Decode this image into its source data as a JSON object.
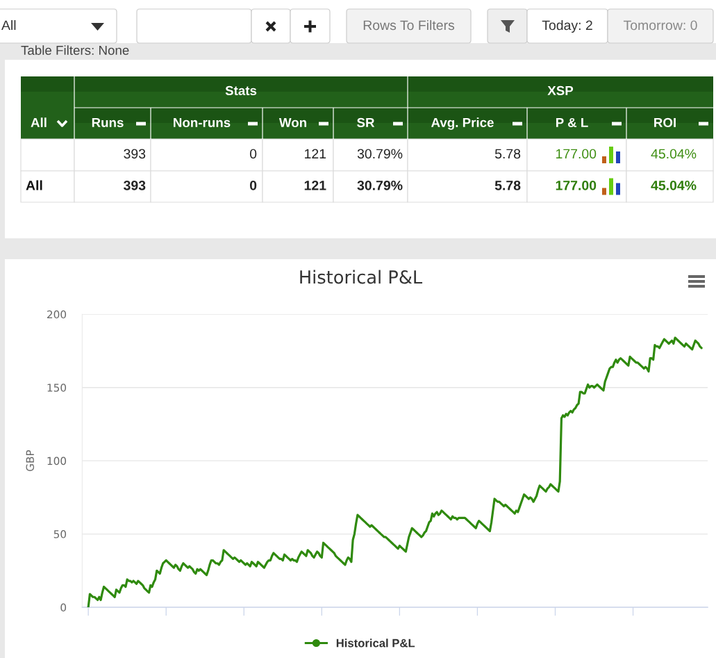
{
  "chart_data": [
    {
      "type": "other",
      "annotations": [
        "All",
        "Rows To Filters",
        "Today: 2",
        "Tomorrow: 0",
        "Table Filters: None",
        "Stats",
        "XSP",
        "All",
        "Runs",
        "Non-runs",
        "Won",
        "SR",
        "Avg. Price",
        "P & L",
        "ROI",
        "393",
        "0",
        "121",
        "30.79%",
        "5.78",
        "177.00",
        "45.04%",
        "All",
        "393",
        "0",
        "121",
        "30.79%",
        "5.78",
        "177.00",
        "45.04%"
      ]
    },
    {
      "type": "line",
      "title": "Historical P&L",
      "ylabel": "GBP",
      "categories": [
        null,
        null,
        null,
        null,
        null,
        null,
        null,
        null,
        null,
        null,
        null,
        null,
        null,
        null,
        null,
        null,
        null,
        null,
        null,
        null,
        null,
        null,
        null,
        null,
        null,
        null,
        null,
        null,
        null,
        null,
        null,
        null,
        null,
        null,
        null,
        null,
        null,
        null,
        null,
        null,
        null,
        null,
        null,
        null,
        null,
        null,
        null,
        null,
        null,
        null,
        null,
        null,
        null,
        null,
        null,
        null,
        null,
        null,
        null,
        null,
        null,
        null,
        null,
        null,
        null,
        null,
        null,
        null,
        null,
        null,
        null,
        null,
        null,
        null,
        null,
        null,
        null,
        null,
        null,
        null,
        null,
        null,
        null,
        null,
        null,
        null,
        null,
        null,
        null,
        null,
        null,
        null,
        null,
        null,
        null,
        null,
        null,
        null,
        null,
        null,
        null,
        null,
        null,
        null,
        null,
        null,
        null,
        null,
        null,
        null,
        null,
        null,
        null,
        null,
        null,
        null,
        null,
        null,
        null,
        null,
        null,
        null,
        null,
        null,
        null,
        null,
        null,
        null,
        null,
        null,
        null,
        null,
        null,
        null,
        null,
        null,
        null,
        null,
        null,
        null,
        null,
        null,
        null,
        null,
        null,
        null,
        null,
        null,
        null,
        null,
        null,
        null,
        null,
        null,
        null,
        null,
        null,
        null,
        null,
        null,
        null,
        null,
        null,
        null,
        null,
        null,
        null,
        null,
        null,
        null,
        null,
        null,
        null,
        null,
        null,
        null,
        null,
        null,
        null,
        null,
        null,
        null,
        null,
        null,
        null,
        null,
        null,
        null,
        null,
        null,
        null,
        null,
        null,
        null,
        null,
        null,
        null,
        null,
        null,
        null,
        null,
        null,
        null,
        null,
        null,
        null,
        null,
        null,
        null,
        null,
        null,
        null,
        null,
        null,
        null,
        null,
        null,
        null,
        null,
        null,
        null,
        null,
        null,
        null,
        null,
        null,
        null,
        null,
        null,
        null,
        null,
        null,
        null,
        null,
        null,
        null,
        null,
        null,
        null,
        null,
        null,
        null,
        null,
        null,
        null,
        null,
        null,
        null,
        null,
        null,
        null,
        null,
        null,
        null,
        null,
        null,
        null,
        null,
        null,
        null,
        null,
        null,
        null,
        null,
        null,
        null,
        null,
        null,
        null,
        null,
        null,
        null,
        null,
        null,
        null,
        null,
        null,
        null,
        null,
        null,
        null,
        null,
        null,
        null,
        null,
        null,
        null,
        null,
        null,
        null,
        null,
        null,
        null,
        null,
        null,
        null,
        null,
        null,
        null,
        null,
        null,
        null,
        null,
        null,
        null,
        null,
        null,
        null,
        null,
        null,
        null,
        null,
        null,
        null,
        null,
        null,
        null,
        null,
        null,
        null,
        null,
        null,
        null,
        null,
        null,
        null,
        null,
        null,
        null,
        null,
        null,
        null,
        null,
        null,
        null,
        null,
        null,
        null,
        null,
        null,
        null,
        null,
        null,
        null,
        null,
        null,
        null,
        null,
        null,
        null,
        null,
        null,
        null,
        null,
        null,
        null,
        null,
        null,
        null,
        null,
        null,
        null,
        null,
        null,
        null,
        null,
        null,
        null,
        null,
        null,
        null,
        null,
        null,
        null,
        null,
        null,
        null,
        null,
        null,
        null,
        null,
        null,
        null,
        null,
        null,
        null,
        null,
        null,
        null,
        null,
        null,
        null,
        null,
        null,
        null
      ],
      "series": [
        {
          "name": "Historical P&L",
          "color": "#2f8a0e",
          "values": [
            0,
            9,
            8,
            7,
            7,
            6,
            5,
            7,
            5,
            10,
            14,
            13,
            12,
            11,
            10,
            9,
            8,
            7,
            12,
            11,
            10,
            13,
            15,
            15,
            14,
            19,
            18,
            18,
            17,
            18,
            17,
            16,
            18,
            17,
            16,
            15,
            13,
            12,
            11,
            10,
            15,
            14,
            17,
            19,
            25,
            24,
            23,
            27,
            30,
            31,
            32,
            31,
            30,
            29,
            28,
            27,
            29,
            28,
            26,
            25,
            28,
            30,
            29,
            28,
            27,
            28,
            27,
            26,
            24,
            23,
            26,
            25,
            26,
            25,
            24,
            23,
            22,
            25,
            29,
            32,
            32,
            31,
            30,
            30,
            29,
            31,
            32,
            39,
            38,
            37,
            36,
            35,
            34,
            33,
            34,
            33,
            32,
            31,
            32,
            31,
            30,
            29,
            30,
            29,
            28,
            31,
            30,
            29,
            28,
            31,
            30,
            29,
            28,
            27,
            29,
            31,
            32,
            32,
            35,
            37,
            36,
            35,
            34,
            33,
            33,
            32,
            36,
            35,
            34,
            33,
            32,
            33,
            32,
            32,
            31,
            34,
            36,
            38,
            37,
            36,
            35,
            39,
            38,
            37,
            35,
            34,
            36,
            38,
            37,
            35,
            34,
            44,
            43,
            42,
            41,
            40,
            39,
            38,
            37,
            35,
            34,
            33,
            32,
            31,
            30,
            29,
            32,
            34,
            33,
            31,
            46,
            50,
            57,
            63,
            62,
            61,
            60,
            59,
            58,
            57,
            56,
            55,
            56,
            55,
            54,
            53,
            52,
            51,
            50,
            49,
            48,
            48,
            47,
            46,
            45,
            44,
            43,
            42,
            41,
            40,
            42,
            41,
            40,
            39,
            38,
            43,
            48,
            51,
            54,
            53,
            52,
            51,
            50,
            49,
            48,
            49,
            51,
            52,
            55,
            58,
            59,
            64,
            62,
            64,
            65,
            63,
            64,
            66,
            65,
            64,
            63,
            62,
            61,
            60,
            62,
            61,
            61,
            60,
            61,
            61,
            61,
            61,
            61,
            60,
            59,
            58,
            57,
            56,
            55,
            54,
            57,
            59,
            58,
            57,
            56,
            55,
            54,
            53,
            52,
            58,
            66,
            74,
            73,
            72,
            72,
            71,
            70,
            69,
            70,
            69,
            68,
            67,
            66,
            65,
            64,
            66,
            65,
            68,
            71,
            74,
            77,
            76,
            75,
            74,
            75,
            74,
            72,
            74,
            76,
            80,
            83,
            82,
            81,
            80,
            79,
            81,
            82,
            84,
            83,
            82,
            81,
            80,
            79,
            86,
            129,
            131,
            130,
            132,
            131,
            133,
            134,
            133,
            135,
            136,
            138,
            139,
            147,
            147,
            146,
            146,
            149,
            152,
            150,
            151,
            151,
            150,
            151,
            152,
            151,
            150,
            149,
            148,
            154,
            157,
            160,
            163,
            164,
            164,
            167,
            169,
            167,
            169,
            170,
            169,
            168,
            167,
            166,
            165,
            171,
            170,
            169,
            168,
            167,
            167,
            166,
            165,
            164,
            163,
            164,
            163,
            161,
            170,
            170,
            169,
            179,
            178,
            178,
            177,
            179,
            181,
            183,
            182,
            181,
            180,
            181,
            182,
            180,
            184,
            183,
            182,
            181,
            180,
            179,
            178,
            180,
            179,
            178,
            177,
            176,
            179,
            182,
            181,
            180,
            178,
            177
          ]
        }
      ],
      "ylim": [
        0,
        200
      ],
      "yticks": [
        0,
        50,
        100,
        150,
        200
      ],
      "tick_labels": "y",
      "grid": "y",
      "legend": "bottom",
      "line_style": "solid"
    }
  ]
}
